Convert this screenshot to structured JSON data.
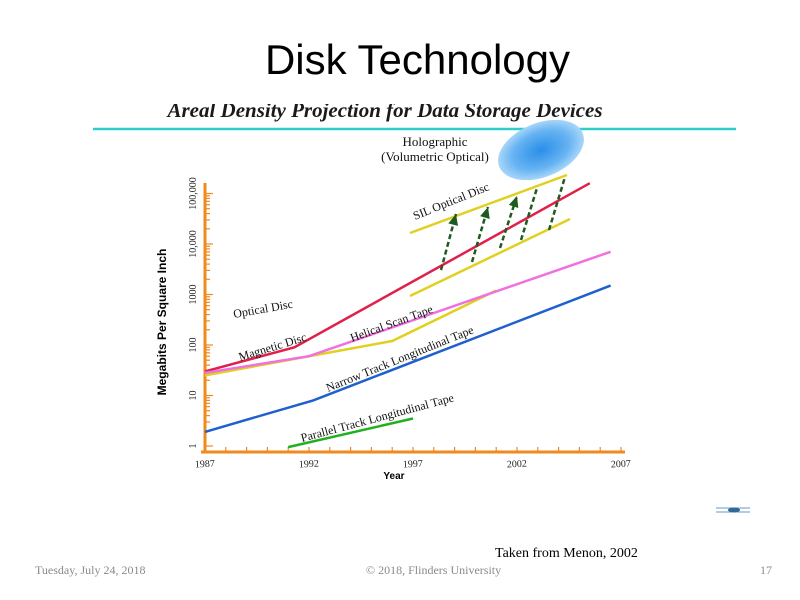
{
  "slide": {
    "title": "Disk Technology",
    "credit": "Taken from Menon, 2002",
    "footer_date": "Tuesday, July 24, 2018",
    "footer_copyright": "© 2018, Flinders University",
    "page_number": "17"
  },
  "chart_data": {
    "type": "line",
    "title": "Areal Density Projection for Data Storage Devices",
    "xlabel": "Year",
    "ylabel": "Megabits Per Square Inch",
    "x_ticks": [
      1987,
      1992,
      1997,
      2002,
      2007
    ],
    "y_ticks": [
      "1",
      "10",
      "100",
      "1000",
      "10,000",
      "100,000"
    ],
    "y_scale": "log",
    "xlim": [
      1987,
      2007
    ],
    "ylim": [
      1,
      200000
    ],
    "grid": false,
    "series": [
      {
        "name": "Optical Disc",
        "color": "#e0d020",
        "x": [
          1987,
          1996,
          2001
        ],
        "y": [
          25,
          120,
          1200
        ]
      },
      {
        "name": "Magnetic Disc",
        "color": "#e0204a",
        "x": [
          1987,
          1991.3,
          2005.5
        ],
        "y": [
          30,
          90,
          160000
        ]
      },
      {
        "name": "Helical Scan Tape",
        "color": "#f070e0",
        "x": [
          1987,
          1992,
          2006.5
        ],
        "y": [
          28,
          60,
          7000
        ]
      },
      {
        "name": "Narrow Track Longitudinal Tape",
        "color": "#2060cc",
        "x": [
          1987,
          1992.2,
          2006.5
        ],
        "y": [
          1.9,
          8,
          1500
        ]
      },
      {
        "name": "Parallel Track Longitudinal Tape",
        "color": "#20b020",
        "x": [
          1991,
          1997
        ],
        "y": [
          0.95,
          3.5
        ]
      }
    ],
    "annotations": {
      "holographic_line1": "Holographic",
      "holographic_line2": "(Volumetric Optical)",
      "sil_label": "SIL Optical Disc",
      "sil_band_color": "#e0d020",
      "arrow_color": "#1f5a1f",
      "hologram_color": "#3399ee"
    }
  }
}
